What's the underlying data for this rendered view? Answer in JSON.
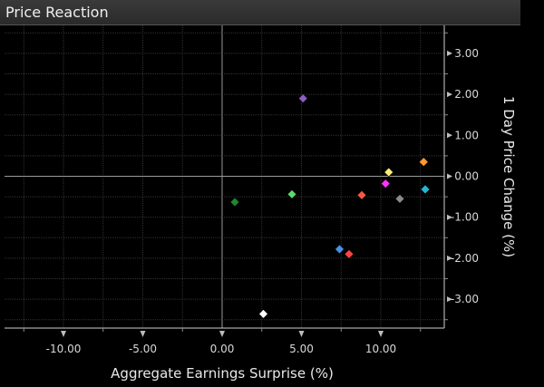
{
  "window": {
    "title": "Price Reaction"
  },
  "chart_data": {
    "type": "scatter",
    "title": "Price Reaction",
    "xlabel": "Aggregate Earnings Surprise (%)",
    "ylabel": "1 Day Price Change (%)",
    "xlim": [
      -13.2,
      14.2
    ],
    "ylim": [
      -3.7,
      3.7
    ],
    "x_ticks": [
      "-10.00",
      "-5.00",
      "0.00",
      "5.00",
      "10.00"
    ],
    "x_tick_values": [
      -10,
      -5,
      0,
      5,
      10
    ],
    "y_ticks": [
      "3.00",
      "2.00",
      "1.00",
      "0.00",
      "-1.00",
      "-2.00",
      "-3.00"
    ],
    "y_tick_values": [
      3,
      2,
      1,
      0,
      -1,
      -2,
      -3
    ],
    "grid": true,
    "marker": "diamond",
    "points": [
      {
        "x": 5.1,
        "y": 1.9,
        "color": "#8e5cc4"
      },
      {
        "x": 0.8,
        "y": -0.63,
        "color": "#1e8a2a"
      },
      {
        "x": 4.4,
        "y": -0.44,
        "color": "#5fd96b"
      },
      {
        "x": 8.8,
        "y": -0.46,
        "color": "#f25a45"
      },
      {
        "x": 10.5,
        "y": 0.1,
        "color": "#ffee77"
      },
      {
        "x": 10.3,
        "y": -0.18,
        "color": "#ff33ff"
      },
      {
        "x": 11.2,
        "y": -0.55,
        "color": "#8c8c8c"
      },
      {
        "x": 12.7,
        "y": 0.35,
        "color": "#ff9933"
      },
      {
        "x": 12.8,
        "y": -0.32,
        "color": "#22b8d6"
      },
      {
        "x": 7.4,
        "y": -1.78,
        "color": "#4a90e2"
      },
      {
        "x": 8.0,
        "y": -1.9,
        "color": "#ff4444"
      },
      {
        "x": 2.6,
        "y": -3.36,
        "color": "#ffffff"
      }
    ]
  }
}
